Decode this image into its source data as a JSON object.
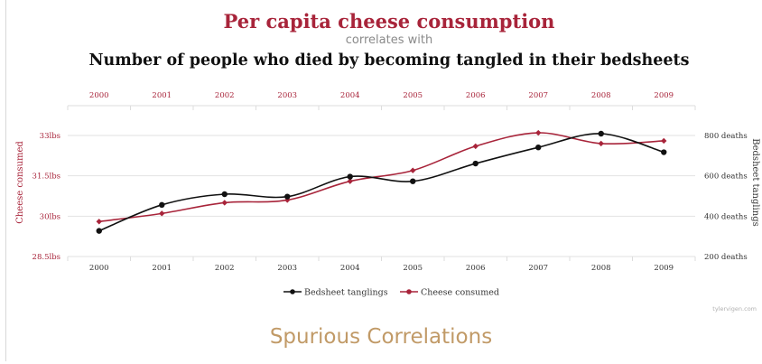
{
  "chart_data": {
    "type": "line",
    "title": "Per capita cheese consumption",
    "subtitle": "correlates with",
    "title2": "Number of people who died by becoming tangled in their bedsheets",
    "x": [
      "2000",
      "2001",
      "2002",
      "2003",
      "2004",
      "2005",
      "2006",
      "2007",
      "2008",
      "2009"
    ],
    "ylabel_left": "Cheese consumed",
    "ylabel_right": "Bedsheet tanglings",
    "yticks_left": [
      "28.5lbs",
      "30lbs",
      "31.5lbs",
      "33lbs"
    ],
    "yticks_right": [
      "200 deaths",
      "400 deaths",
      "600 deaths",
      "800 deaths"
    ],
    "ylim_left": [
      28.5,
      33
    ],
    "ylim_right": [
      200,
      800
    ],
    "legend_position": "bottom-center",
    "series": [
      {
        "name": "Bedsheet tanglings",
        "axis": "right",
        "color": "#111111",
        "values": [
          327,
          456,
          509,
          497,
          596,
          573,
          661,
          741,
          809,
          717
        ]
      },
      {
        "name": "Cheese consumed",
        "axis": "left",
        "color": "#a8243a",
        "values": [
          29.8,
          30.1,
          30.5,
          30.6,
          31.3,
          31.7,
          32.6,
          33.1,
          32.7,
          32.8
        ]
      }
    ],
    "watermark": "tylervigen.com",
    "colors": {
      "title": "#a8243a",
      "grid": "#e2e2e2",
      "tick_text": "#555555"
    }
  },
  "caption": "Spurious Correlations"
}
